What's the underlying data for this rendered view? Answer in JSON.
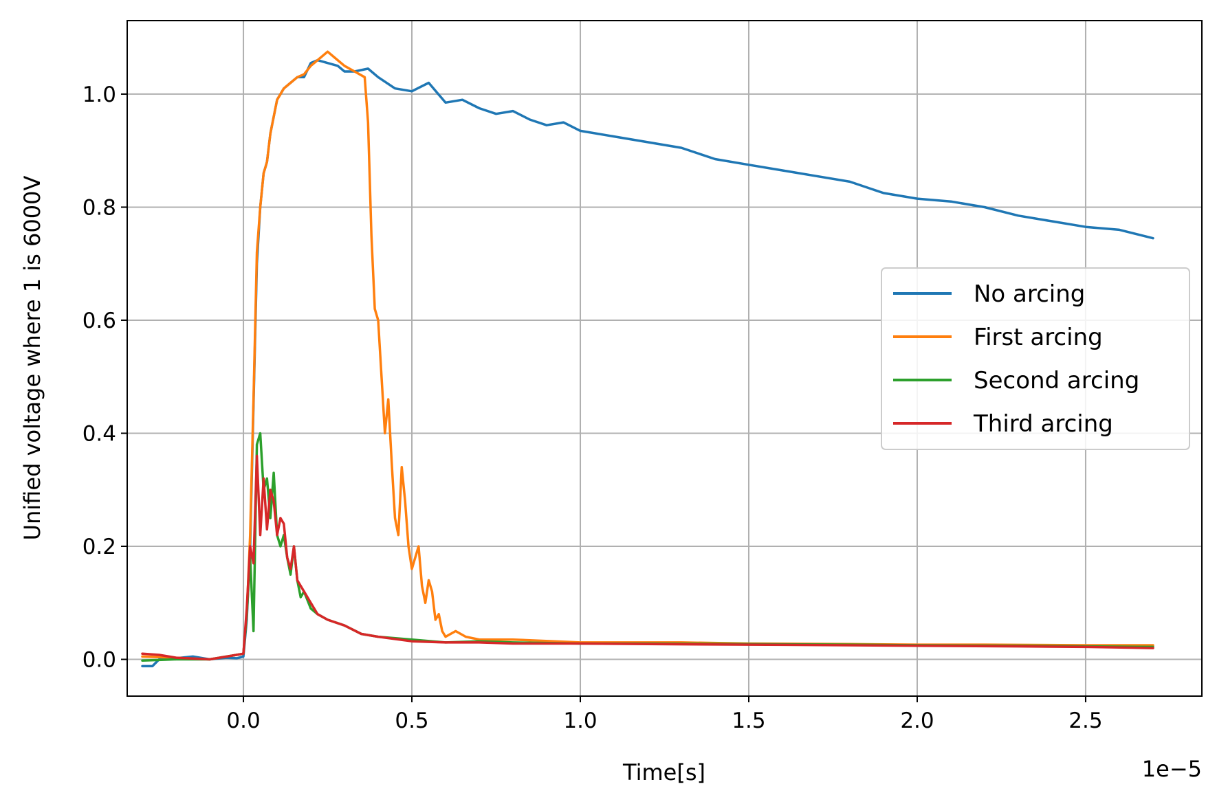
{
  "chart_data": {
    "type": "line",
    "title": "",
    "xlabel": "Time[s]",
    "ylabel": "Unified voltage where 1 is 6000V",
    "x_offset_text": "1e−5",
    "xlim": [
      -3.45e-06,
      2.845e-05
    ],
    "ylim": [
      -0.065,
      1.13
    ],
    "x_ticks": [
      {
        "value": 0.0,
        "label": "0.0"
      },
      {
        "value": 5e-06,
        "label": "0.5"
      },
      {
        "value": 1e-05,
        "label": "1.0"
      },
      {
        "value": 1.5e-05,
        "label": "1.5"
      },
      {
        "value": 2e-05,
        "label": "2.0"
      },
      {
        "value": 2.5e-05,
        "label": "2.5"
      }
    ],
    "y_ticks": [
      {
        "value": 0.0,
        "label": "0.0"
      },
      {
        "value": 0.2,
        "label": "0.2"
      },
      {
        "value": 0.4,
        "label": "0.4"
      },
      {
        "value": 0.6,
        "label": "0.6"
      },
      {
        "value": 0.8,
        "label": "0.8"
      },
      {
        "value": 1.0,
        "label": "1.0"
      }
    ],
    "grid": true,
    "legend_position": "center-right",
    "series": [
      {
        "name": "No arcing",
        "color": "#1f77b4",
        "x": [
          -3e-06,
          -2.7e-06,
          -2.5e-06,
          -2e-06,
          -1.5e-06,
          -1e-06,
          -5e-07,
          -2e-07,
          0,
          1e-07,
          2e-07,
          3e-07,
          4e-07,
          5e-07,
          6e-07,
          7e-07,
          8e-07,
          9e-07,
          1e-06,
          1.2e-06,
          1.4e-06,
          1.6e-06,
          1.8e-06,
          2e-06,
          2.2e-06,
          2.5e-06,
          2.8e-06,
          3e-06,
          3.3e-06,
          3.7e-06,
          4e-06,
          4.5e-06,
          5e-06,
          5.5e-06,
          6e-06,
          6.5e-06,
          7e-06,
          7.5e-06,
          8e-06,
          8.5e-06,
          9e-06,
          9.5e-06,
          1e-05,
          1.1e-05,
          1.2e-05,
          1.3e-05,
          1.4e-05,
          1.5e-05,
          1.6e-05,
          1.7e-05,
          1.8e-05,
          1.9e-05,
          2e-05,
          2.1e-05,
          2.2e-05,
          2.3e-05,
          2.4e-05,
          2.5e-05,
          2.6e-05,
          2.7e-05
        ],
        "y": [
          -0.012,
          -0.012,
          0.0,
          0.002,
          0.005,
          0.0,
          0.003,
          0.002,
          0.005,
          0.07,
          0.2,
          0.45,
          0.7,
          0.8,
          0.86,
          0.88,
          0.93,
          0.96,
          0.99,
          1.01,
          1.02,
          1.03,
          1.03,
          1.055,
          1.06,
          1.055,
          1.05,
          1.04,
          1.04,
          1.045,
          1.03,
          1.01,
          1.005,
          1.02,
          0.985,
          0.99,
          0.975,
          0.965,
          0.97,
          0.955,
          0.945,
          0.95,
          0.935,
          0.925,
          0.915,
          0.905,
          0.885,
          0.875,
          0.865,
          0.855,
          0.845,
          0.825,
          0.815,
          0.81,
          0.8,
          0.785,
          0.775,
          0.765,
          0.76,
          0.745
        ]
      },
      {
        "name": "First arcing",
        "color": "#ff7f0e",
        "x": [
          -3e-06,
          -2e-06,
          -1e-06,
          0,
          1e-07,
          2e-07,
          3e-07,
          4e-07,
          5e-07,
          6e-07,
          7e-07,
          8e-07,
          9e-07,
          1e-06,
          1.2e-06,
          1.4e-06,
          1.6e-06,
          1.8e-06,
          2e-06,
          2.2e-06,
          2.5e-06,
          2.8e-06,
          3e-06,
          3.3e-06,
          3.6e-06,
          3.7e-06,
          3.8e-06,
          3.9e-06,
          4e-06,
          4.1e-06,
          4.2e-06,
          4.3e-06,
          4.4e-06,
          4.5e-06,
          4.6e-06,
          4.7e-06,
          4.8e-06,
          4.9e-06,
          5e-06,
          5.1e-06,
          5.2e-06,
          5.3e-06,
          5.4e-06,
          5.5e-06,
          5.6e-06,
          5.7e-06,
          5.8e-06,
          5.9e-06,
          6e-06,
          6.3e-06,
          6.6e-06,
          7e-06,
          8e-06,
          1e-05,
          1.1e-05,
          1.2e-05,
          1.3e-05,
          1.5e-05,
          1.8e-05,
          2e-05,
          2.2e-05,
          2.5e-05,
          2.7e-05
        ],
        "y": [
          0.005,
          0.003,
          0.0,
          0.01,
          0.08,
          0.22,
          0.46,
          0.72,
          0.8,
          0.86,
          0.88,
          0.93,
          0.96,
          0.99,
          1.01,
          1.02,
          1.03,
          1.035,
          1.05,
          1.06,
          1.075,
          1.06,
          1.05,
          1.04,
          1.03,
          0.95,
          0.75,
          0.62,
          0.6,
          0.5,
          0.4,
          0.46,
          0.35,
          0.25,
          0.22,
          0.34,
          0.28,
          0.2,
          0.16,
          0.18,
          0.2,
          0.13,
          0.1,
          0.14,
          0.12,
          0.07,
          0.08,
          0.05,
          0.04,
          0.05,
          0.04,
          0.035,
          0.035,
          0.03,
          0.03,
          0.03,
          0.03,
          0.028,
          0.027,
          0.026,
          0.026,
          0.025,
          0.025
        ]
      },
      {
        "name": "Second arcing",
        "color": "#2ca02c",
        "x": [
          -3e-06,
          -2e-06,
          -1e-06,
          0,
          1e-07,
          2e-07,
          3e-07,
          4e-07,
          5e-07,
          6e-07,
          7e-07,
          8e-07,
          9e-07,
          1e-06,
          1.1e-06,
          1.2e-06,
          1.3e-06,
          1.4e-06,
          1.5e-06,
          1.6e-06,
          1.7e-06,
          1.8e-06,
          2e-06,
          2.2e-06,
          2.5e-06,
          3e-06,
          3.5e-06,
          4e-06,
          5e-06,
          6e-06,
          7e-06,
          8e-06,
          1e-05,
          1.2e-05,
          1.5e-05,
          1.8e-05,
          2e-05,
          2.3e-05,
          2.5e-05,
          2.7e-05
        ],
        "y": [
          -0.002,
          0.0,
          0.0,
          0.01,
          0.08,
          0.18,
          0.05,
          0.38,
          0.4,
          0.3,
          0.32,
          0.25,
          0.33,
          0.22,
          0.2,
          0.22,
          0.18,
          0.15,
          0.2,
          0.14,
          0.11,
          0.12,
          0.09,
          0.08,
          0.07,
          0.06,
          0.045,
          0.04,
          0.035,
          0.03,
          0.032,
          0.03,
          0.028,
          0.028,
          0.027,
          0.026,
          0.025,
          0.024,
          0.023,
          0.022
        ]
      },
      {
        "name": "Third arcing",
        "color": "#d62728",
        "x": [
          -3e-06,
          -2.5e-06,
          -2e-06,
          -1e-06,
          0,
          1e-07,
          2e-07,
          3e-07,
          4e-07,
          5e-07,
          6e-07,
          7e-07,
          8e-07,
          9e-07,
          1e-06,
          1.1e-06,
          1.2e-06,
          1.3e-06,
          1.4e-06,
          1.5e-06,
          1.6e-06,
          1.8e-06,
          2e-06,
          2.2e-06,
          2.5e-06,
          3e-06,
          3.5e-06,
          4e-06,
          5e-06,
          6e-06,
          7e-06,
          8e-06,
          1e-05,
          1.2e-05,
          1.5e-05,
          1.8e-05,
          2e-05,
          2.3e-05,
          2.5e-05,
          2.7e-05
        ],
        "y": [
          0.01,
          0.008,
          0.003,
          0.0,
          0.01,
          0.09,
          0.2,
          0.17,
          0.36,
          0.22,
          0.32,
          0.23,
          0.3,
          0.28,
          0.22,
          0.25,
          0.24,
          0.18,
          0.16,
          0.2,
          0.14,
          0.12,
          0.1,
          0.08,
          0.07,
          0.06,
          0.045,
          0.04,
          0.032,
          0.03,
          0.03,
          0.028,
          0.028,
          0.027,
          0.026,
          0.025,
          0.024,
          0.023,
          0.022,
          0.02
        ]
      }
    ]
  }
}
